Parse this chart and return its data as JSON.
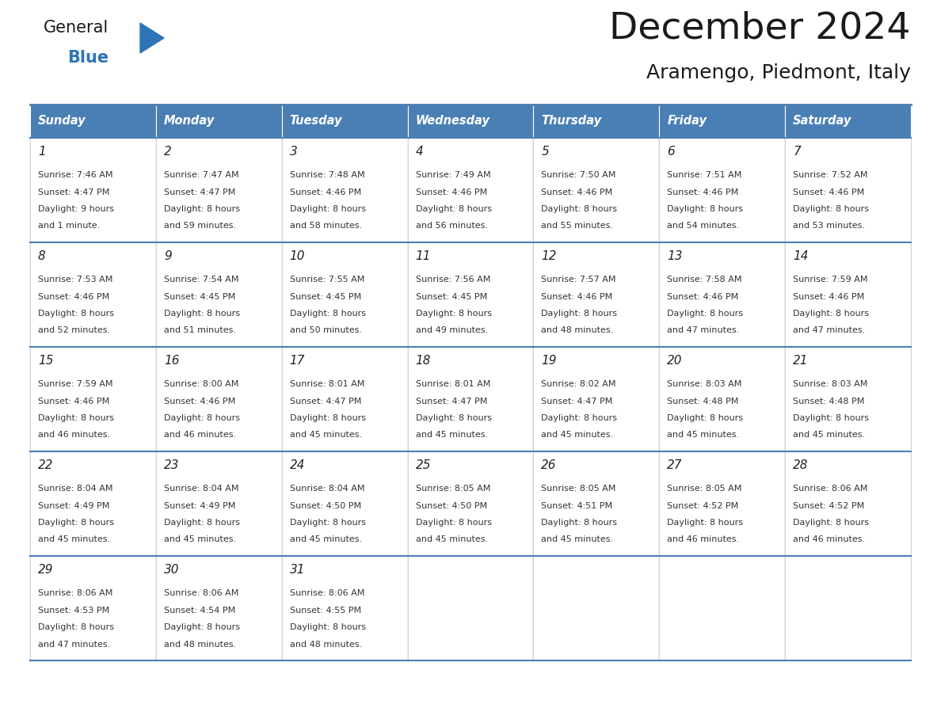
{
  "title": "December 2024",
  "subtitle": "Aramengo, Piedmont, Italy",
  "header_color": "#4a7fb5",
  "header_text_color": "#ffffff",
  "border_color": "#4a7fb5",
  "days_of_week": [
    "Sunday",
    "Monday",
    "Tuesday",
    "Wednesday",
    "Thursday",
    "Friday",
    "Saturday"
  ],
  "calendar_data": [
    [
      {
        "day": "1",
        "sunrise": "7:46 AM",
        "sunset": "4:47 PM",
        "daylight": "9 hours\nand 1 minute."
      },
      {
        "day": "2",
        "sunrise": "7:47 AM",
        "sunset": "4:47 PM",
        "daylight": "8 hours\nand 59 minutes."
      },
      {
        "day": "3",
        "sunrise": "7:48 AM",
        "sunset": "4:46 PM",
        "daylight": "8 hours\nand 58 minutes."
      },
      {
        "day": "4",
        "sunrise": "7:49 AM",
        "sunset": "4:46 PM",
        "daylight": "8 hours\nand 56 minutes."
      },
      {
        "day": "5",
        "sunrise": "7:50 AM",
        "sunset": "4:46 PM",
        "daylight": "8 hours\nand 55 minutes."
      },
      {
        "day": "6",
        "sunrise": "7:51 AM",
        "sunset": "4:46 PM",
        "daylight": "8 hours\nand 54 minutes."
      },
      {
        "day": "7",
        "sunrise": "7:52 AM",
        "sunset": "4:46 PM",
        "daylight": "8 hours\nand 53 minutes."
      }
    ],
    [
      {
        "day": "8",
        "sunrise": "7:53 AM",
        "sunset": "4:46 PM",
        "daylight": "8 hours\nand 52 minutes."
      },
      {
        "day": "9",
        "sunrise": "7:54 AM",
        "sunset": "4:45 PM",
        "daylight": "8 hours\nand 51 minutes."
      },
      {
        "day": "10",
        "sunrise": "7:55 AM",
        "sunset": "4:45 PM",
        "daylight": "8 hours\nand 50 minutes."
      },
      {
        "day": "11",
        "sunrise": "7:56 AM",
        "sunset": "4:45 PM",
        "daylight": "8 hours\nand 49 minutes."
      },
      {
        "day": "12",
        "sunrise": "7:57 AM",
        "sunset": "4:46 PM",
        "daylight": "8 hours\nand 48 minutes."
      },
      {
        "day": "13",
        "sunrise": "7:58 AM",
        "sunset": "4:46 PM",
        "daylight": "8 hours\nand 47 minutes."
      },
      {
        "day": "14",
        "sunrise": "7:59 AM",
        "sunset": "4:46 PM",
        "daylight": "8 hours\nand 47 minutes."
      }
    ],
    [
      {
        "day": "15",
        "sunrise": "7:59 AM",
        "sunset": "4:46 PM",
        "daylight": "8 hours\nand 46 minutes."
      },
      {
        "day": "16",
        "sunrise": "8:00 AM",
        "sunset": "4:46 PM",
        "daylight": "8 hours\nand 46 minutes."
      },
      {
        "day": "17",
        "sunrise": "8:01 AM",
        "sunset": "4:47 PM",
        "daylight": "8 hours\nand 45 minutes."
      },
      {
        "day": "18",
        "sunrise": "8:01 AM",
        "sunset": "4:47 PM",
        "daylight": "8 hours\nand 45 minutes."
      },
      {
        "day": "19",
        "sunrise": "8:02 AM",
        "sunset": "4:47 PM",
        "daylight": "8 hours\nand 45 minutes."
      },
      {
        "day": "20",
        "sunrise": "8:03 AM",
        "sunset": "4:48 PM",
        "daylight": "8 hours\nand 45 minutes."
      },
      {
        "day": "21",
        "sunrise": "8:03 AM",
        "sunset": "4:48 PM",
        "daylight": "8 hours\nand 45 minutes."
      }
    ],
    [
      {
        "day": "22",
        "sunrise": "8:04 AM",
        "sunset": "4:49 PM",
        "daylight": "8 hours\nand 45 minutes."
      },
      {
        "day": "23",
        "sunrise": "8:04 AM",
        "sunset": "4:49 PM",
        "daylight": "8 hours\nand 45 minutes."
      },
      {
        "day": "24",
        "sunrise": "8:04 AM",
        "sunset": "4:50 PM",
        "daylight": "8 hours\nand 45 minutes."
      },
      {
        "day": "25",
        "sunrise": "8:05 AM",
        "sunset": "4:50 PM",
        "daylight": "8 hours\nand 45 minutes."
      },
      {
        "day": "26",
        "sunrise": "8:05 AM",
        "sunset": "4:51 PM",
        "daylight": "8 hours\nand 45 minutes."
      },
      {
        "day": "27",
        "sunrise": "8:05 AM",
        "sunset": "4:52 PM",
        "daylight": "8 hours\nand 46 minutes."
      },
      {
        "day": "28",
        "sunrise": "8:06 AM",
        "sunset": "4:52 PM",
        "daylight": "8 hours\nand 46 minutes."
      }
    ],
    [
      {
        "day": "29",
        "sunrise": "8:06 AM",
        "sunset": "4:53 PM",
        "daylight": "8 hours\nand 47 minutes."
      },
      {
        "day": "30",
        "sunrise": "8:06 AM",
        "sunset": "4:54 PM",
        "daylight": "8 hours\nand 48 minutes."
      },
      {
        "day": "31",
        "sunrise": "8:06 AM",
        "sunset": "4:55 PM",
        "daylight": "8 hours\nand 48 minutes."
      },
      null,
      null,
      null,
      null
    ]
  ],
  "logo_general_color": "#1a1a1a",
  "logo_blue_color": "#2e75b6",
  "triangle_color": "#2e75b6",
  "fig_width": 11.88,
  "fig_height": 9.18,
  "dpi": 100
}
